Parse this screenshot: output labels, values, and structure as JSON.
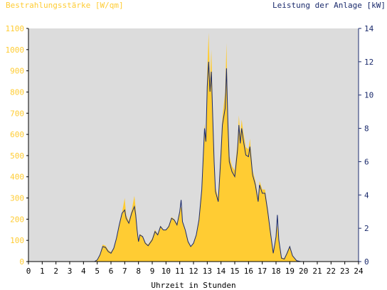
{
  "chart_data": {
    "type": "area",
    "left_axis": {
      "label": "Bestrahlungsstärke [W/qm]",
      "min": 0,
      "max": 1100,
      "ticks": [
        0,
        100,
        200,
        300,
        400,
        500,
        600,
        700,
        800,
        900,
        1000,
        1100
      ],
      "color": "#ffcc33"
    },
    "right_axis": {
      "label": "Leistung der Anlage [kW]",
      "min": 0,
      "max": 14,
      "ticks": [
        0,
        2,
        4,
        6,
        8,
        10,
        12,
        14
      ],
      "color": "#1a2a6c"
    },
    "x_axis": {
      "label": "Uhrzeit in Stunden",
      "min": 0,
      "max": 24,
      "ticks": [
        0,
        1,
        2,
        3,
        4,
        5,
        6,
        7,
        8,
        9,
        10,
        11,
        12,
        13,
        14,
        15,
        16,
        17,
        18,
        19,
        20,
        21,
        22,
        23,
        24
      ]
    },
    "grid": false,
    "background": "#dcdcdc",
    "series": [
      {
        "name": "Bestrahlungsstärke",
        "axis": "left",
        "color": "#ffcc33",
        "points": [
          [
            0,
            0
          ],
          [
            4.8,
            0
          ],
          [
            5.0,
            10
          ],
          [
            5.2,
            35
          ],
          [
            5.4,
            80
          ],
          [
            5.6,
            75
          ],
          [
            5.8,
            55
          ],
          [
            6.0,
            45
          ],
          [
            6.2,
            65
          ],
          [
            6.4,
            110
          ],
          [
            6.6,
            170
          ],
          [
            6.8,
            230
          ],
          [
            7.0,
            300
          ],
          [
            7.1,
            220
          ],
          [
            7.3,
            190
          ],
          [
            7.5,
            240
          ],
          [
            7.7,
            310
          ],
          [
            7.8,
            250
          ],
          [
            7.9,
            160
          ],
          [
            8.0,
            100
          ],
          [
            8.1,
            130
          ],
          [
            8.3,
            120
          ],
          [
            8.5,
            90
          ],
          [
            8.7,
            80
          ],
          [
            9.0,
            110
          ],
          [
            9.2,
            150
          ],
          [
            9.4,
            130
          ],
          [
            9.6,
            170
          ],
          [
            9.8,
            150
          ],
          [
            10.0,
            150
          ],
          [
            10.2,
            170
          ],
          [
            10.4,
            210
          ],
          [
            10.6,
            200
          ],
          [
            10.8,
            180
          ],
          [
            11.0,
            240
          ],
          [
            11.1,
            260
          ],
          [
            11.2,
            190
          ],
          [
            11.4,
            150
          ],
          [
            11.6,
            100
          ],
          [
            11.8,
            70
          ],
          [
            12.0,
            90
          ],
          [
            12.2,
            130
          ],
          [
            12.4,
            200
          ],
          [
            12.6,
            340
          ],
          [
            12.8,
            650
          ],
          [
            12.9,
            580
          ],
          [
            13.0,
            900
          ],
          [
            13.1,
            1080
          ],
          [
            13.2,
            850
          ],
          [
            13.3,
            1000
          ],
          [
            13.4,
            720
          ],
          [
            13.5,
            500
          ],
          [
            13.6,
            350
          ],
          [
            13.8,
            300
          ],
          [
            14.0,
            550
          ],
          [
            14.1,
            680
          ],
          [
            14.3,
            800
          ],
          [
            14.4,
            1030
          ],
          [
            14.5,
            700
          ],
          [
            14.6,
            500
          ],
          [
            14.8,
            450
          ],
          [
            15.0,
            430
          ],
          [
            15.2,
            560
          ],
          [
            15.3,
            690
          ],
          [
            15.4,
            600
          ],
          [
            15.5,
            670
          ],
          [
            15.6,
            620
          ],
          [
            15.8,
            540
          ],
          [
            16.0,
            530
          ],
          [
            16.1,
            580
          ],
          [
            16.3,
            430
          ],
          [
            16.5,
            380
          ],
          [
            16.7,
            300
          ],
          [
            16.8,
            380
          ],
          [
            17.0,
            340
          ],
          [
            17.2,
            340
          ],
          [
            17.4,
            250
          ],
          [
            17.6,
            140
          ],
          [
            17.8,
            40
          ],
          [
            17.9,
            80
          ],
          [
            18.0,
            120
          ],
          [
            18.1,
            170
          ],
          [
            18.2,
            110
          ],
          [
            18.4,
            20
          ],
          [
            18.6,
            15
          ],
          [
            18.8,
            45
          ],
          [
            19.0,
            75
          ],
          [
            19.2,
            30
          ],
          [
            19.5,
            5
          ],
          [
            19.8,
            0
          ],
          [
            24,
            0
          ]
        ]
      },
      {
        "name": "Leistung der Anlage",
        "axis": "right",
        "color": "#1a2a6c",
        "points": [
          [
            0,
            0
          ],
          [
            4.8,
            0
          ],
          [
            5.0,
            0.1
          ],
          [
            5.2,
            0.4
          ],
          [
            5.4,
            0.9
          ],
          [
            5.6,
            0.85
          ],
          [
            5.8,
            0.6
          ],
          [
            6.0,
            0.5
          ],
          [
            6.2,
            0.8
          ],
          [
            6.4,
            1.4
          ],
          [
            6.6,
            2.2
          ],
          [
            6.8,
            2.9
          ],
          [
            7.0,
            3.1
          ],
          [
            7.1,
            2.6
          ],
          [
            7.3,
            2.3
          ],
          [
            7.5,
            2.9
          ],
          [
            7.7,
            3.3
          ],
          [
            7.8,
            2.8
          ],
          [
            7.9,
            1.9
          ],
          [
            8.0,
            1.2
          ],
          [
            8.1,
            1.6
          ],
          [
            8.3,
            1.5
          ],
          [
            8.5,
            1.1
          ],
          [
            8.7,
            0.95
          ],
          [
            9.0,
            1.3
          ],
          [
            9.2,
            1.8
          ],
          [
            9.4,
            1.6
          ],
          [
            9.6,
            2.1
          ],
          [
            9.8,
            1.9
          ],
          [
            10.0,
            1.9
          ],
          [
            10.2,
            2.1
          ],
          [
            10.4,
            2.6
          ],
          [
            10.6,
            2.5
          ],
          [
            10.8,
            2.2
          ],
          [
            11.0,
            3.0
          ],
          [
            11.1,
            3.7
          ],
          [
            11.2,
            2.4
          ],
          [
            11.4,
            1.9
          ],
          [
            11.6,
            1.2
          ],
          [
            11.8,
            0.9
          ],
          [
            12.0,
            1.1
          ],
          [
            12.2,
            1.6
          ],
          [
            12.4,
            2.5
          ],
          [
            12.6,
            4.3
          ],
          [
            12.8,
            8.0
          ],
          [
            12.9,
            7.2
          ],
          [
            13.0,
            10.5
          ],
          [
            13.1,
            12.0
          ],
          [
            13.2,
            10.2
          ],
          [
            13.3,
            11.4
          ],
          [
            13.4,
            8.6
          ],
          [
            13.5,
            6.0
          ],
          [
            13.6,
            4.2
          ],
          [
            13.8,
            3.6
          ],
          [
            14.0,
            6.5
          ],
          [
            14.1,
            8.2
          ],
          [
            14.3,
            9.2
          ],
          [
            14.4,
            11.6
          ],
          [
            14.5,
            8.4
          ],
          [
            14.6,
            6.0
          ],
          [
            14.8,
            5.4
          ],
          [
            15.0,
            5.1
          ],
          [
            15.2,
            6.7
          ],
          [
            15.3,
            8.2
          ],
          [
            15.4,
            7.1
          ],
          [
            15.5,
            8.0
          ],
          [
            15.6,
            7.4
          ],
          [
            15.8,
            6.4
          ],
          [
            16.0,
            6.3
          ],
          [
            16.1,
            6.9
          ],
          [
            16.3,
            5.2
          ],
          [
            16.5,
            4.6
          ],
          [
            16.7,
            3.6
          ],
          [
            16.8,
            4.6
          ],
          [
            17.0,
            4.1
          ],
          [
            17.2,
            4.1
          ],
          [
            17.4,
            3.0
          ],
          [
            17.6,
            1.7
          ],
          [
            17.8,
            0.5
          ],
          [
            17.9,
            1.0
          ],
          [
            18.0,
            1.5
          ],
          [
            18.1,
            2.8
          ],
          [
            18.2,
            1.3
          ],
          [
            18.4,
            0.2
          ],
          [
            18.6,
            0.15
          ],
          [
            18.8,
            0.5
          ],
          [
            19.0,
            0.9
          ],
          [
            19.2,
            0.35
          ],
          [
            19.5,
            0.05
          ],
          [
            19.8,
            0
          ],
          [
            24,
            0
          ]
        ]
      }
    ]
  }
}
